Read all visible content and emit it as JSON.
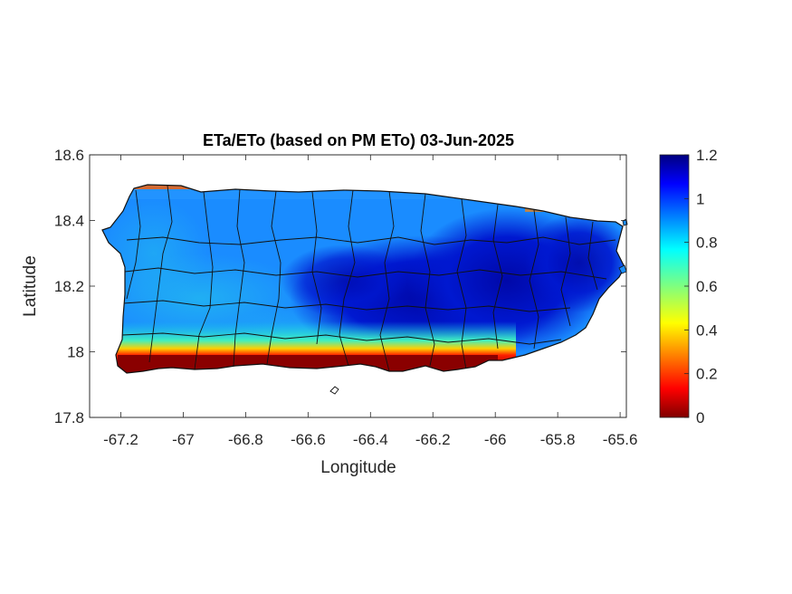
{
  "chart_data": {
    "type": "heatmap",
    "title": "ETa/ETo (based on PM ETo) 03-Jun-2025",
    "xlabel": "Longitude",
    "ylabel": "Latitude",
    "xlim": [
      -67.3,
      -65.58
    ],
    "ylim": [
      17.8,
      18.6
    ],
    "xticks": [
      "-67.2",
      "-67",
      "-66.8",
      "-66.6",
      "-66.4",
      "-66.2",
      "-66",
      "-65.8",
      "-65.6"
    ],
    "yticks": [
      "17.8",
      "18",
      "18.2",
      "18.4",
      "18.6"
    ],
    "colorbar": {
      "colormap": "jet",
      "clim": [
        0,
        1.2
      ],
      "ticks": [
        "0",
        "0.2",
        "0.4",
        "0.6",
        "0.8",
        "1",
        "1.2"
      ]
    },
    "description_values": {
      "south_coast": 0.1,
      "southwest_interior": 0.75,
      "northwest_interior": 0.9,
      "central_east": 1.1,
      "northeast": 1.0
    }
  }
}
